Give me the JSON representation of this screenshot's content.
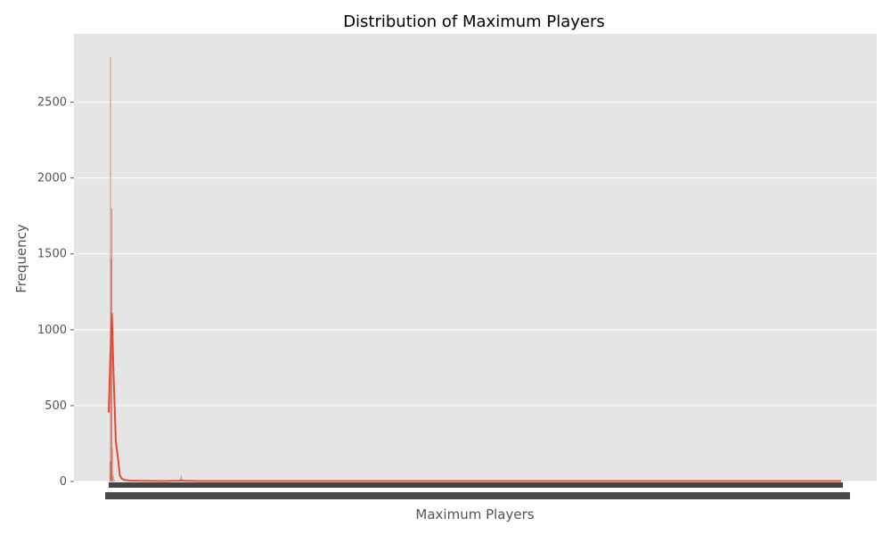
{
  "chart_data": {
    "type": "bar",
    "title": "Distribution of Maximum Players",
    "xlabel": "Maximum Players",
    "ylabel": "Frequency",
    "x_tick_labels_note": "dense overlapping numeric tick labels, illegible",
    "ylim": [
      0,
      2950
    ],
    "y_ticks": [
      0,
      500,
      1000,
      1500,
      2000,
      2500
    ],
    "grid": true,
    "background": "#e5e5e5",
    "bar_color": "#e24a33",
    "bar_opacity": 0.55,
    "kde_color": "#e24a33",
    "bins": [
      {
        "x": 0.0,
        "count": 130
      },
      {
        "x": 0.5,
        "count": 2800
      },
      {
        "x": 1.0,
        "count": 140
      },
      {
        "x": 1.5,
        "count": 1470
      },
      {
        "x": 2.0,
        "count": 1800
      },
      {
        "x": 2.5,
        "count": 220
      },
      {
        "x": 3.5,
        "count": 40
      },
      {
        "x": 5.0,
        "count": 12
      },
      {
        "x": 7.0,
        "count": 6
      },
      {
        "x": 9.0,
        "count": 4
      },
      {
        "x": 14.0,
        "count": 3
      },
      {
        "x": 80.0,
        "count": 40
      },
      {
        "x": 82.0,
        "count": 8
      }
    ],
    "kde": [
      {
        "x": -1.5,
        "y": 455
      },
      {
        "x": 0.0,
        "y": 760
      },
      {
        "x": 2.0,
        "y": 1110
      },
      {
        "x": 4.0,
        "y": 700
      },
      {
        "x": 6.5,
        "y": 260
      },
      {
        "x": 9.0,
        "y": 150
      },
      {
        "x": 11.0,
        "y": 40
      },
      {
        "x": 13.0,
        "y": 20
      },
      {
        "x": 16.0,
        "y": 10
      },
      {
        "x": 22.0,
        "y": 6
      },
      {
        "x": 35.0,
        "y": 4
      },
      {
        "x": 60.0,
        "y": 3
      },
      {
        "x": 78.0,
        "y": 5
      },
      {
        "x": 80.0,
        "y": 9
      },
      {
        "x": 82.0,
        "y": 5
      },
      {
        "x": 100.0,
        "y": 3
      },
      {
        "x": 300.0,
        "y": 3
      },
      {
        "x": 600.0,
        "y": 3
      },
      {
        "x": 822.0,
        "y": 3
      }
    ]
  }
}
